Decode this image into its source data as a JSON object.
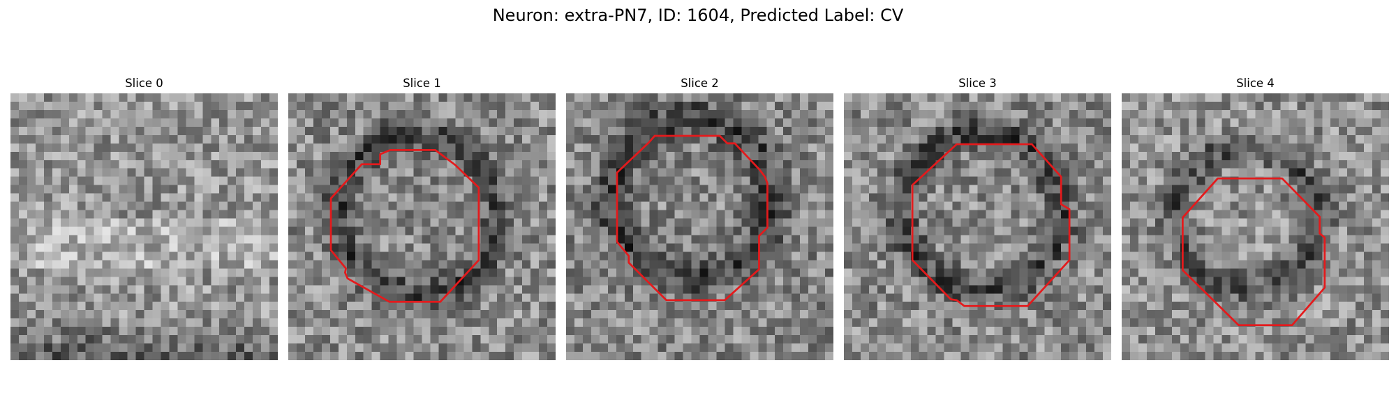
{
  "figure": {
    "title": "Neuron: extra-PN7, ID: 1604, Predicted Label: CV"
  },
  "panels": [
    {
      "title": "Slice 0",
      "has_contour": false,
      "contour_color": "#e41a1c"
    },
    {
      "title": "Slice 1",
      "has_contour": true,
      "contour_color": "#e41a1c"
    },
    {
      "title": "Slice 2",
      "has_contour": true,
      "contour_color": "#e41a1c"
    },
    {
      "title": "Slice 3",
      "has_contour": true,
      "contour_color": "#e41a1c"
    },
    {
      "title": "Slice 4",
      "has_contour": true,
      "contour_color": "#e41a1c"
    }
  ],
  "colormap": "gray"
}
